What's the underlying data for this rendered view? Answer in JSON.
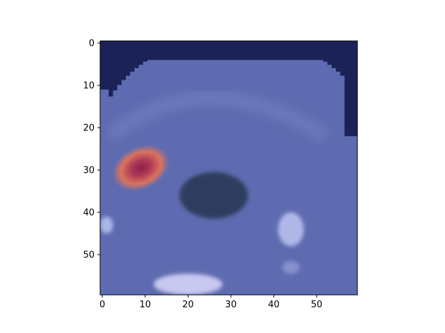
{
  "chart_data": {
    "type": "heatmap",
    "title": "",
    "xlabel": "",
    "ylabel": "",
    "xlim": [
      -0.5,
      59.5
    ],
    "ylim": [
      59.5,
      -0.5
    ],
    "y_inverted": true,
    "grid": false,
    "legend": "none",
    "xticks": [
      0,
      10,
      20,
      30,
      40,
      50
    ],
    "yticks": [
      0,
      10,
      20,
      30,
      40,
      50
    ],
    "xtick_labels": [
      "0",
      "10",
      "20",
      "30",
      "40",
      "50"
    ],
    "ytick_labels": [
      "0",
      "10",
      "20",
      "30",
      "40",
      "50"
    ],
    "image_size": [
      60,
      60
    ],
    "background_color": "#1c2257",
    "tissue_color": "#5f6bb0",
    "hotspot": {
      "center": [
        9,
        29.5
      ],
      "radius": [
        7,
        5
      ],
      "peak_color": "#8a1f4a",
      "edge_color": "#e07a66"
    },
    "dark_region": {
      "center": [
        26,
        36
      ],
      "radius": [
        8,
        5.5
      ],
      "color": "#2e3d5e"
    },
    "bright_spots": [
      {
        "center": [
          20,
          57
        ],
        "radius": [
          8,
          2.5
        ],
        "color": "#c8c8f0"
      },
      {
        "center": [
          44,
          44
        ],
        "radius": [
          3,
          4
        ],
        "color": "#b0b8e8"
      },
      {
        "center": [
          1,
          43
        ],
        "radius": [
          1.5,
          2
        ],
        "color": "#a8b8e8"
      },
      {
        "center": [
          44,
          53
        ],
        "radius": [
          2,
          1.5
        ],
        "color": "#8890d0"
      }
    ]
  }
}
